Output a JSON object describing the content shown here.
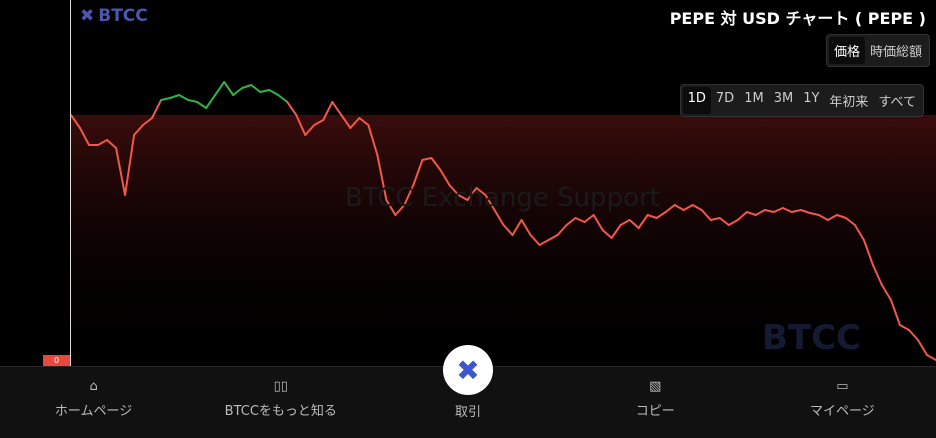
{
  "brand": "BTCC",
  "title": "PEPE 対 USD チャート ( PEPE )",
  "view_tabs": [
    {
      "label": "価格",
      "active": true
    },
    {
      "label": "時価総額",
      "active": false
    }
  ],
  "range_tabs": [
    {
      "label": "1D",
      "active": true
    },
    {
      "label": "7D"
    },
    {
      "label": "1M"
    },
    {
      "label": "3M"
    },
    {
      "label": "1Y"
    },
    {
      "label": "年初来"
    },
    {
      "label": "すべて"
    }
  ],
  "watermark": "BTCC Exchange Support",
  "watermark_logo": "BTCC",
  "price_marker": "0",
  "colors": {
    "up": "#2fb344",
    "down": "#f0584a",
    "brand": "#3d56c9"
  },
  "nav": [
    {
      "label": "ホームページ",
      "icon": "home-icon"
    },
    {
      "label": "BTCCをもっと知る",
      "icon": "bars-icon"
    },
    {
      "label": "取引",
      "icon": "btcc-logo-icon"
    },
    {
      "label": "コピー",
      "icon": "copy-chart-icon"
    },
    {
      "label": "マイページ",
      "icon": "wallet-icon"
    }
  ],
  "chart_data": {
    "type": "line",
    "baseline": 250,
    "values": [
      250,
      237,
      220,
      220,
      225,
      217,
      170,
      230,
      240,
      247,
      265,
      267,
      270,
      265,
      263,
      257,
      270,
      283,
      270,
      277,
      280,
      273,
      275,
      270,
      263,
      250,
      230,
      240,
      245,
      263,
      250,
      237,
      247,
      240,
      210,
      165,
      150,
      160,
      180,
      205,
      207,
      195,
      180,
      170,
      165,
      177,
      170,
      155,
      140,
      130,
      145,
      130,
      120,
      125,
      130,
      140,
      147,
      143,
      150,
      135,
      127,
      140,
      145,
      137,
      150,
      147,
      153,
      160,
      155,
      160,
      155,
      145,
      147,
      140,
      145,
      153,
      150,
      155,
      153,
      157,
      153,
      155,
      152,
      150,
      145,
      150,
      147,
      140,
      125,
      100,
      80,
      65,
      40,
      35,
      25,
      10,
      5
    ]
  }
}
